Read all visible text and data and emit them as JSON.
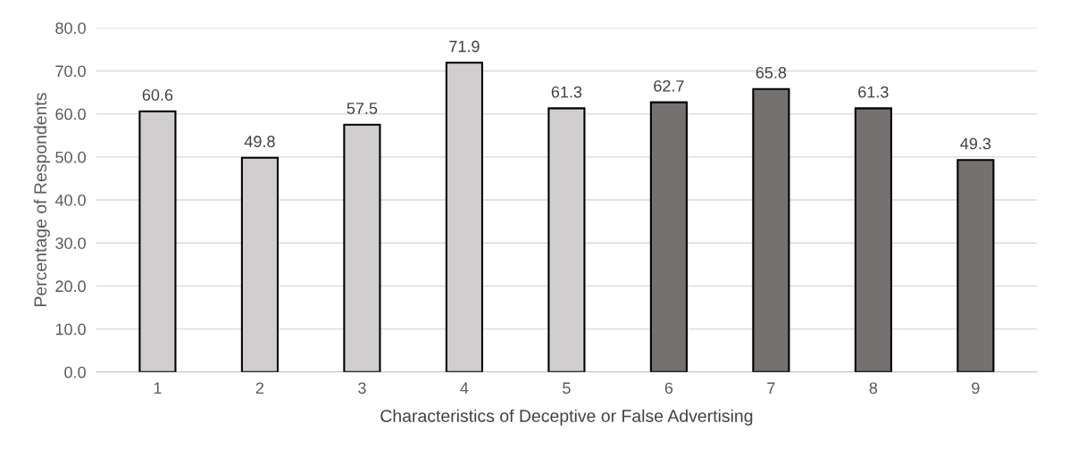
{
  "chart_data": {
    "type": "bar",
    "xlabel": "Characteristics of Deceptive or False Advertising",
    "ylabel": "Percentage of Respondents",
    "categories": [
      "1",
      "2",
      "3",
      "4",
      "5",
      "6",
      "7",
      "8",
      "9"
    ],
    "values": [
      60.6,
      49.8,
      57.5,
      71.9,
      61.3,
      62.7,
      65.8,
      61.3,
      49.3
    ],
    "colors": [
      "#d0cece",
      "#d0cece",
      "#d0cece",
      "#d0cece",
      "#d0cece",
      "#767171",
      "#767171",
      "#767171",
      "#767171"
    ],
    "ylim": [
      0,
      80
    ],
    "yticks": [
      {
        "value": 0,
        "label": "0.0"
      },
      {
        "value": 10,
        "label": "10.0"
      },
      {
        "value": 20,
        "label": "20.0"
      },
      {
        "value": 30,
        "label": "30.0"
      },
      {
        "value": 40,
        "label": "40.0"
      },
      {
        "value": 50,
        "label": "50.0"
      },
      {
        "value": 60,
        "label": "60.0"
      },
      {
        "value": 70,
        "label": "70.0"
      },
      {
        "value": 80,
        "label": "80.0"
      }
    ],
    "grid": "y",
    "data_labels": true
  }
}
